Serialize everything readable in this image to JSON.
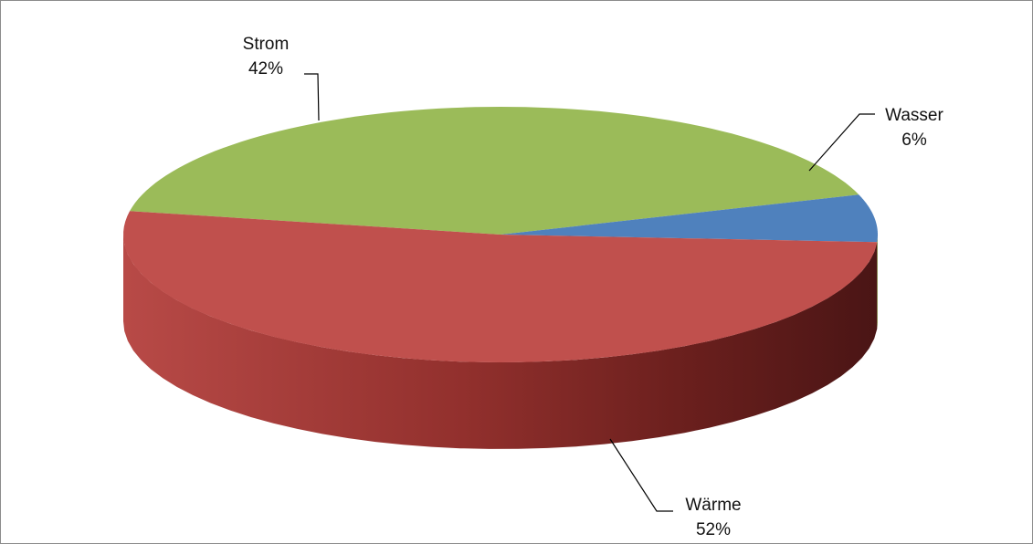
{
  "chart_data": {
    "type": "pie",
    "style": "3d",
    "title": "",
    "slices": [
      {
        "label": "Strom",
        "value": 42,
        "display": "42%",
        "color": "#9BBB59"
      },
      {
        "label": "Wasser",
        "value": 6,
        "display": "6%",
        "color": "#4F81BD"
      },
      {
        "label": "Wärme",
        "value": 52,
        "display": "52%",
        "color": "#C0504D"
      }
    ],
    "legend": "none",
    "data_labels": "outside with leader lines"
  }
}
